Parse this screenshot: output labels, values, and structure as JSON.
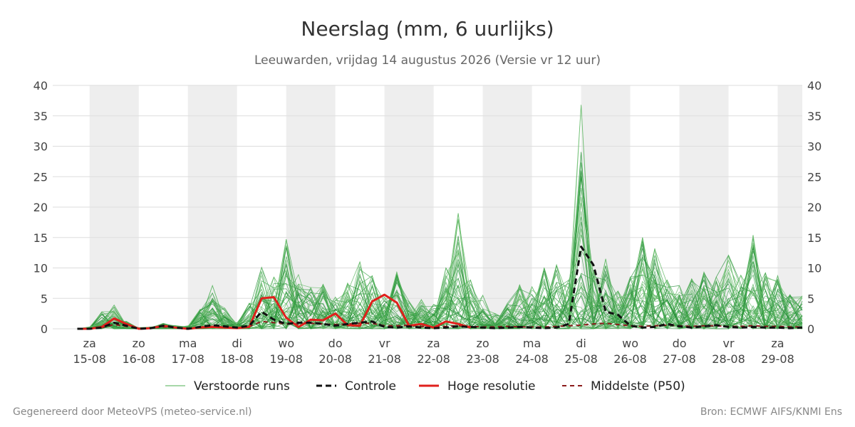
{
  "title": "Neerslag (mm, 6 uurlijks)",
  "subtitle": "Leeuwarden, vrijdag 14 augustus 2026 (Versie vr 12 uur)",
  "footer": {
    "left": "Gegenereerd door MeteoVPS (meteo-service.nl)",
    "right": "Bron: ECMWF AIFS/KNMI Ens"
  },
  "colors": {
    "ensemble": "#4caf50",
    "control": "#111111",
    "high_res": "#e0201c",
    "median": "#8b1a1a",
    "weekend_band": "#eeeeee",
    "grid": "#dddddd",
    "axis_text": "#444444"
  },
  "chart_data": {
    "type": "line",
    "title": "Neerslag (mm, 6 uurlijks)",
    "subtitle": "Leeuwarden, vrijdag 14 augustus 2026 (Versie vr 12 uur)",
    "xlabel": "",
    "ylabel": "",
    "ylim": [
      0,
      40
    ],
    "yticks": [
      0,
      5,
      10,
      15,
      20,
      25,
      30,
      35,
      40
    ],
    "grid": true,
    "legend_position": "bottom",
    "x_range_days": [
      -0.75,
      14.5
    ],
    "weekend_bands_days": [
      [
        0,
        1
      ],
      [
        2,
        3
      ],
      [
        4,
        5
      ],
      [
        6,
        7
      ],
      [
        8,
        9
      ],
      [
        10,
        11
      ],
      [
        12,
        13
      ],
      [
        14,
        14.5
      ]
    ],
    "day_ticks": [
      {
        "day": 0,
        "weekday": "za",
        "date": "15-08"
      },
      {
        "day": 1,
        "weekday": "zo",
        "date": "16-08"
      },
      {
        "day": 2,
        "weekday": "ma",
        "date": "17-08"
      },
      {
        "day": 3,
        "weekday": "di",
        "date": "18-08"
      },
      {
        "day": 4,
        "weekday": "wo",
        "date": "19-08"
      },
      {
        "day": 5,
        "weekday": "do",
        "date": "20-08"
      },
      {
        "day": 6,
        "weekday": "vr",
        "date": "21-08"
      },
      {
        "day": 7,
        "weekday": "za",
        "date": "22-08"
      },
      {
        "day": 8,
        "weekday": "zo",
        "date": "23-08"
      },
      {
        "day": 9,
        "weekday": "ma",
        "date": "24-08"
      },
      {
        "day": 10,
        "weekday": "di",
        "date": "25-08"
      },
      {
        "day": 11,
        "weekday": "wo",
        "date": "26-08"
      },
      {
        "day": 12,
        "weekday": "do",
        "date": "27-08"
      },
      {
        "day": 13,
        "weekday": "vr",
        "date": "28-08"
      },
      {
        "day": 14,
        "weekday": "za",
        "date": "29-08"
      }
    ],
    "legend": [
      {
        "key": "ensemble",
        "label": "Verstoorde runs",
        "style": "thin"
      },
      {
        "key": "control",
        "label": "Controle",
        "style": "dashed"
      },
      {
        "key": "high_res",
        "label": "Hoge resolutie",
        "style": "solid"
      },
      {
        "key": "median",
        "label": "Middelste (P50)",
        "style": "dashed-thin"
      }
    ],
    "control": {
      "name": "Controle",
      "x": [
        -0.25,
        0,
        0.25,
        0.5,
        0.75,
        1,
        1.25,
        1.5,
        1.75,
        2,
        2.25,
        2.5,
        2.75,
        3,
        3.25,
        3.5,
        3.75,
        4,
        4.25,
        4.5,
        4.75,
        5,
        5.25,
        5.5,
        5.75,
        6,
        6.25,
        6.5,
        6.75,
        7,
        7.25,
        7.5,
        7.75,
        8,
        8.25,
        8.5,
        8.75,
        9,
        9.25,
        9.5,
        9.75,
        10,
        10.25,
        10.5,
        10.75,
        11,
        11.25,
        11.5,
        11.75,
        12,
        12.25,
        12.5,
        12.75,
        13,
        13.25,
        13.5,
        13.75,
        14,
        14.25,
        14.5
      ],
      "values": [
        0,
        0,
        0.2,
        1.0,
        0.5,
        0,
        0.1,
        0.5,
        0.2,
        0,
        0.3,
        0.6,
        0.4,
        0.2,
        0.5,
        2.8,
        1.5,
        0.8,
        1.0,
        1.0,
        0.8,
        0.5,
        0.8,
        1.0,
        1.2,
        0.3,
        0.2,
        0.4,
        0.2,
        0.1,
        0.2,
        0.4,
        0.3,
        0.2,
        0.1,
        0.2,
        0.3,
        0.2,
        0.1,
        0.2,
        0.8,
        13.5,
        10.5,
        2.8,
        2.3,
        0.5,
        0.2,
        0.3,
        0.8,
        0.4,
        0.2,
        0.4,
        0.6,
        0.3,
        0.2,
        0.3,
        0.2,
        0.2,
        0.1,
        0.2
      ]
    },
    "high_res": {
      "name": "Hoge resolutie",
      "x": [
        -0.25,
        0,
        0.25,
        0.5,
        0.75,
        1,
        1.25,
        1.5,
        1.75,
        2,
        2.25,
        2.5,
        2.75,
        3,
        3.25,
        3.5,
        3.75,
        4,
        4.25,
        4.5,
        4.75,
        5,
        5.25,
        5.5,
        5.75,
        6,
        6.25,
        6.5,
        6.75,
        7,
        7.25,
        7.5,
        7.75
      ],
      "values": [
        0,
        0,
        0.3,
        1.7,
        0.8,
        0,
        0.1,
        0.5,
        0.2,
        0,
        0.2,
        0.3,
        0.2,
        0.1,
        0.3,
        5.0,
        5.2,
        1.8,
        0.3,
        1.5,
        1.4,
        2.5,
        0.6,
        0.5,
        4.5,
        5.6,
        4.3,
        0.5,
        0.8,
        0.2,
        1.2,
        0.8,
        0.2
      ]
    },
    "median": {
      "name": "Middelste (P50)",
      "x": [
        -0.25,
        0,
        0.25,
        0.5,
        0.75,
        1,
        1.25,
        1.5,
        1.75,
        2,
        2.25,
        2.5,
        2.75,
        3,
        3.25,
        3.5,
        3.75,
        4,
        4.25,
        4.5,
        4.75,
        5,
        5.25,
        5.5,
        5.75,
        6,
        6.25,
        6.5,
        6.75,
        7,
        7.25,
        7.5,
        7.75,
        8,
        8.25,
        8.5,
        8.75,
        9,
        9.25,
        9.5,
        9.75,
        10,
        10.25,
        10.5,
        10.75,
        11,
        11.25,
        11.5,
        11.75,
        12,
        12.25,
        12.5,
        12.75,
        13,
        13.25,
        13.5,
        13.75,
        14,
        14.25,
        14.5
      ],
      "values": [
        0,
        0,
        0.2,
        0.7,
        0.4,
        0,
        0.1,
        0.3,
        0.2,
        0.1,
        0.3,
        0.4,
        0.3,
        0.2,
        0.4,
        1.2,
        1.0,
        0.8,
        0.8,
        0.9,
        0.8,
        0.7,
        0.8,
        0.9,
        0.9,
        0.5,
        0.5,
        0.6,
        0.4,
        0.3,
        0.4,
        0.5,
        0.4,
        0.3,
        0.3,
        0.4,
        0.3,
        0.3,
        0.3,
        0.4,
        0.5,
        0.6,
        0.8,
        0.9,
        0.7,
        0.5,
        0.4,
        0.5,
        0.6,
        0.5,
        0.4,
        0.5,
        0.5,
        0.4,
        0.4,
        0.5,
        0.4,
        0.4,
        0.3,
        0.3
      ]
    },
    "ensemble": {
      "name": "Verstoorde runs",
      "member_count": 50,
      "x_start": -0.25,
      "x_step": 0.25,
      "envelope_max": [
        0,
        0.3,
        2.8,
        3.9,
        1.2,
        0.2,
        0.3,
        0.9,
        0.5,
        0.5,
        3.2,
        7.1,
        3.4,
        1.0,
        4.2,
        10.1,
        8.5,
        14.7,
        8.9,
        6.8,
        7.3,
        5.2,
        7.5,
        11.0,
        8.7,
        5.2,
        9.3,
        4.5,
        4.8,
        4.0,
        10.0,
        19.0,
        8.0,
        5.5,
        2.5,
        4.2,
        7.2,
        6.9,
        10.0,
        10.5,
        8.0,
        36.8,
        9.5,
        11.5,
        6.2,
        8.5,
        15.0,
        13.2,
        8.0,
        7.1,
        8.2,
        9.3,
        8.5,
        12.1,
        8.8,
        15.4,
        9.2,
        8.7,
        5.6,
        5.4
      ]
    }
  }
}
